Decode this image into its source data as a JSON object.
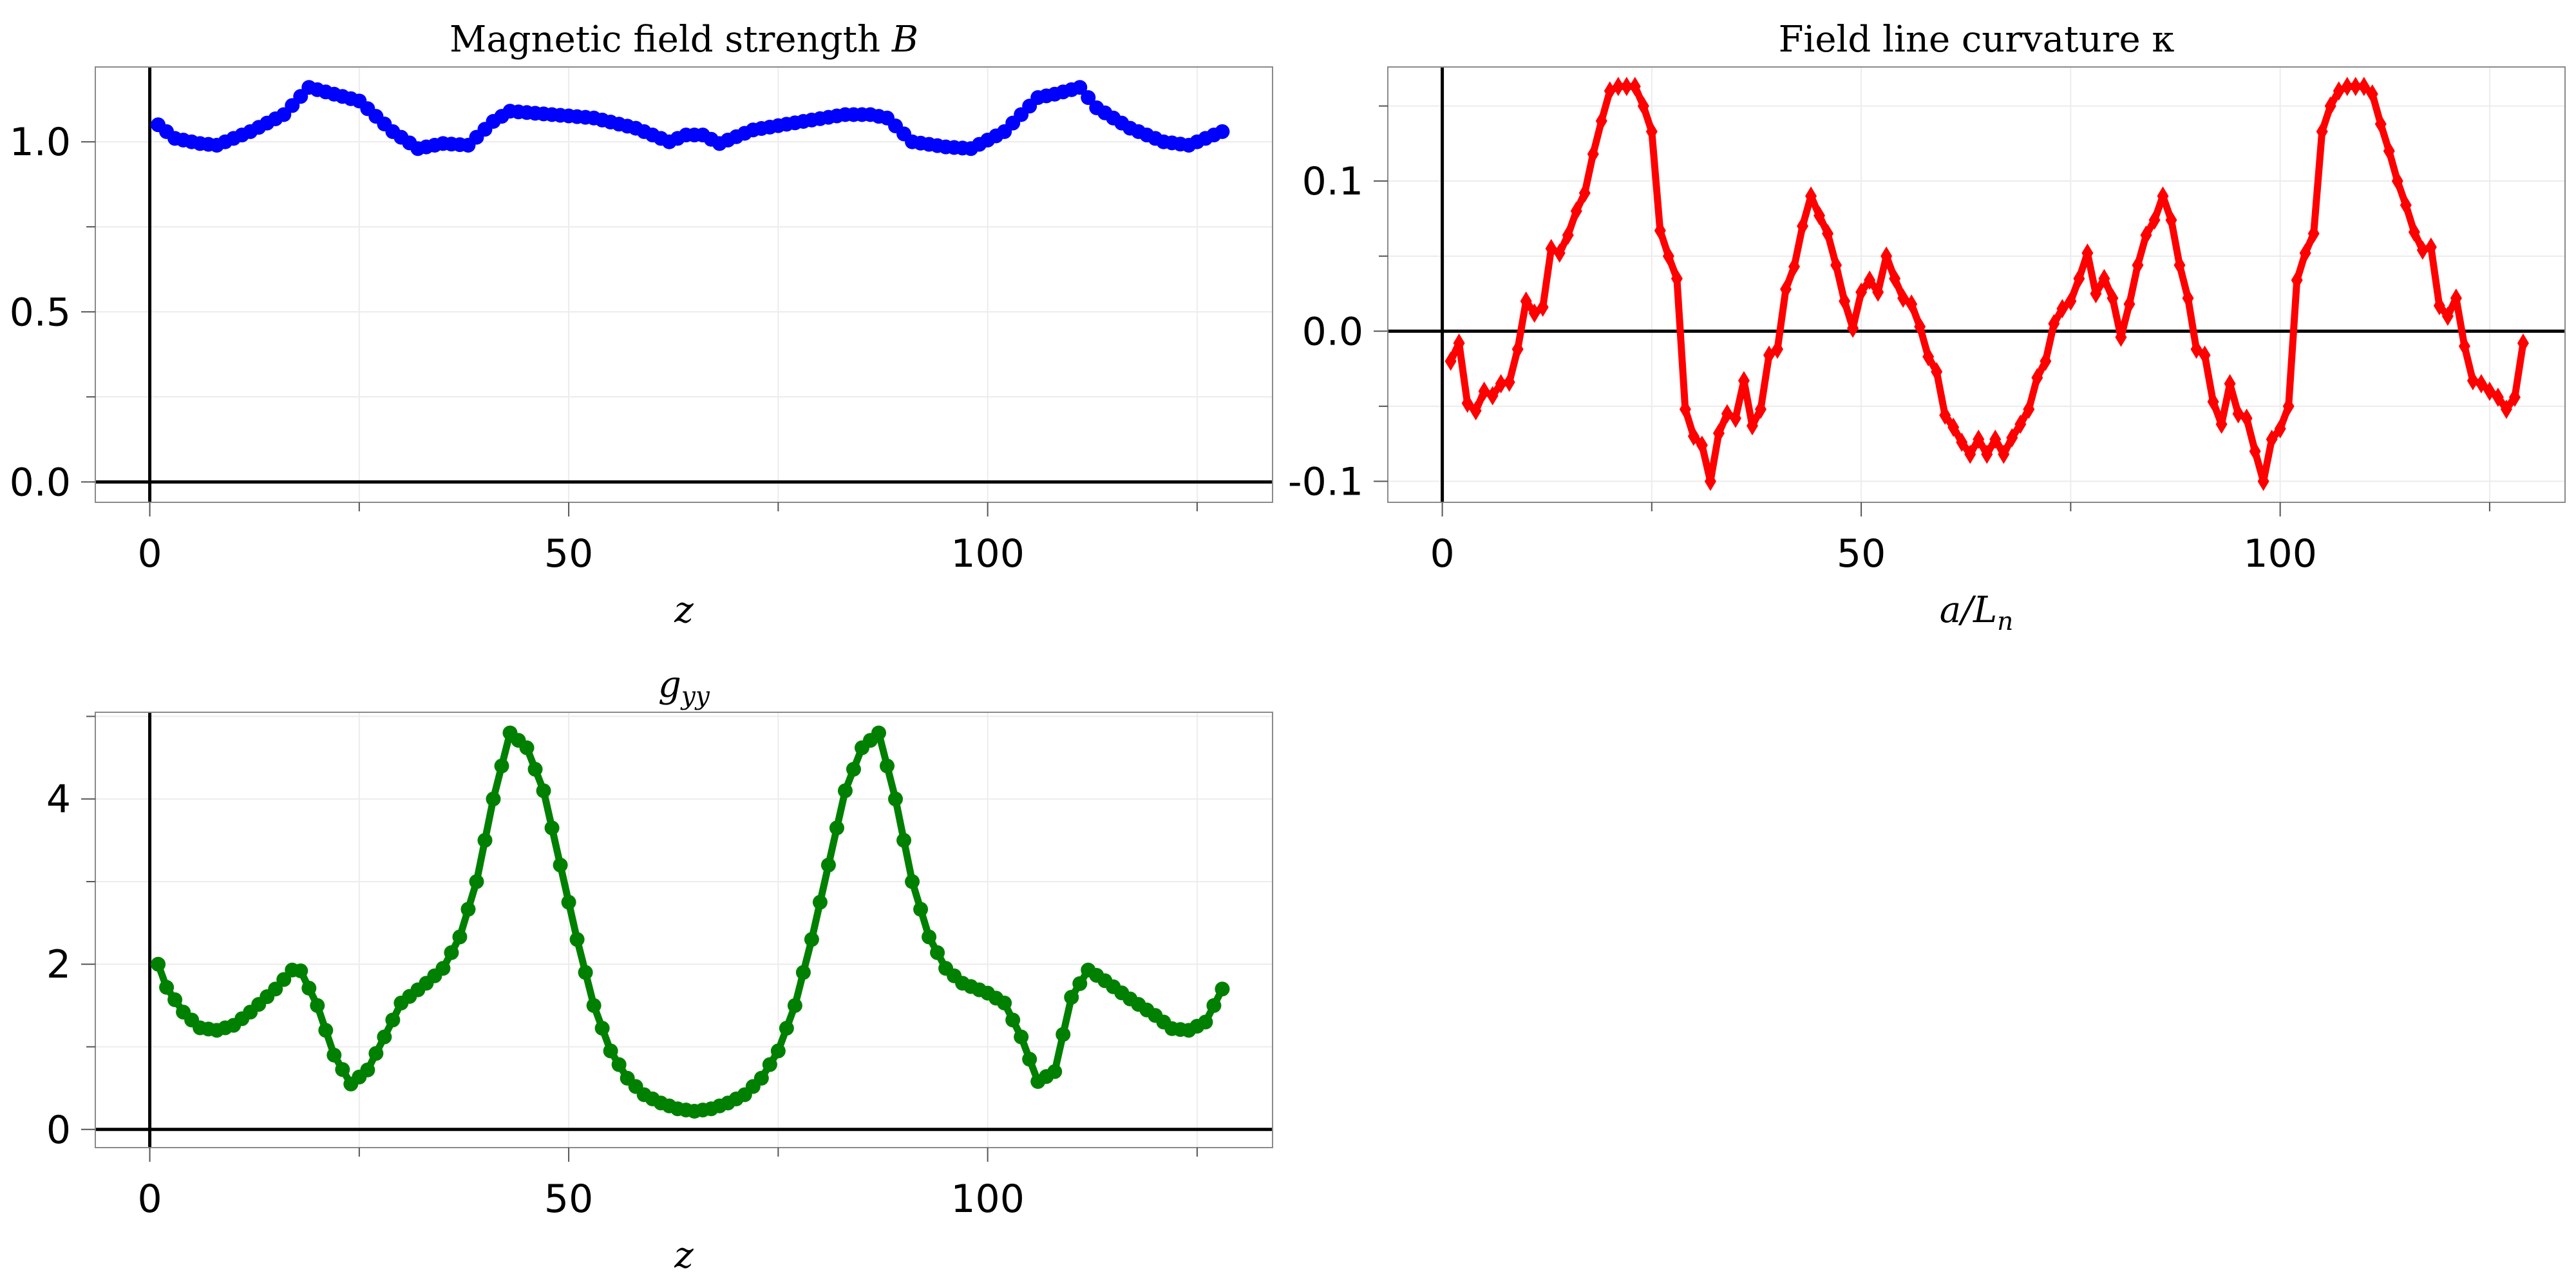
{
  "chart_data": [
    {
      "type": "line",
      "title": "Magnetic field strength B",
      "xlabel": "z",
      "ylabel": "",
      "xlim": [
        -6.5,
        134
      ],
      "ylim": [
        -0.06,
        1.22
      ],
      "xticks": [
        0,
        50,
        100
      ],
      "xtick_labels": [
        "0",
        "50",
        "100"
      ],
      "yticks": [
        0.0,
        0.5,
        1.0
      ],
      "ytick_labels": [
        "0.0",
        "0.5",
        "1.0"
      ],
      "grid": true,
      "color": "#0000ff",
      "marker": "circle",
      "knots": [
        [
          1,
          1.05
        ],
        [
          3,
          1.01
        ],
        [
          6,
          0.995
        ],
        [
          8,
          0.99
        ],
        [
          12,
          1.03
        ],
        [
          16,
          1.08
        ],
        [
          19,
          1.16
        ],
        [
          22,
          1.14
        ],
        [
          25,
          1.12
        ],
        [
          29,
          1.03
        ],
        [
          32,
          0.98
        ],
        [
          35,
          0.995
        ],
        [
          38,
          0.99
        ],
        [
          41,
          1.06
        ],
        [
          43,
          1.09
        ],
        [
          48,
          1.08
        ],
        [
          53,
          1.07
        ],
        [
          58,
          1.04
        ],
        [
          62,
          1.0
        ],
        [
          64,
          1.02
        ],
        [
          66,
          1.02
        ],
        [
          68,
          0.995
        ],
        [
          72,
          1.035
        ],
        [
          78,
          1.06
        ],
        [
          83,
          1.08
        ],
        [
          86,
          1.08
        ],
        [
          88,
          1.07
        ],
        [
          91,
          1.0
        ],
        [
          95,
          0.985
        ],
        [
          98,
          0.98
        ],
        [
          102,
          1.03
        ],
        [
          106,
          1.13
        ],
        [
          108,
          1.14
        ],
        [
          111,
          1.16
        ],
        [
          113,
          1.1
        ],
        [
          117,
          1.04
        ],
        [
          121,
          1.0
        ],
        [
          124,
          0.99
        ],
        [
          127,
          1.02
        ],
        [
          128,
          1.03
        ]
      ],
      "n_points": 128
    },
    {
      "type": "line",
      "title": "Field line curvature κ",
      "xlabel": "a/L_n",
      "ylabel": "",
      "xlim": [
        -6.5,
        134
      ],
      "ylim": [
        -0.114,
        0.176
      ],
      "xticks": [
        0,
        50,
        100
      ],
      "xtick_labels": [
        "0",
        "50",
        "100"
      ],
      "yticks": [
        -0.1,
        0.0,
        0.1
      ],
      "ytick_labels": [
        "-0.1",
        "0.0",
        "0.1"
      ],
      "grid": true,
      "color": "#ff0000",
      "marker": "diamond",
      "values": [
        -0.02,
        -0.008,
        -0.048,
        -0.053,
        -0.04,
        -0.043,
        -0.035,
        -0.034,
        -0.012,
        0.02,
        0.012,
        0.016,
        0.055,
        0.052,
        0.064,
        0.08,
        0.092,
        0.118,
        0.14,
        0.16,
        0.163,
        0.163,
        0.163,
        0.15,
        0.133,
        0.067,
        0.05,
        0.035,
        -0.052,
        -0.07,
        -0.076,
        -0.1,
        -0.068,
        -0.055,
        -0.058,
        -0.033,
        -0.063,
        -0.052,
        -0.016,
        -0.012,
        0.028,
        0.043,
        0.07,
        0.09,
        0.077,
        0.065,
        0.044,
        0.02,
        0.002,
        0.026,
        0.034,
        0.026,
        0.05,
        0.035,
        0.022,
        0.018,
        0.003,
        -0.017,
        -0.027,
        -0.056,
        -0.064,
        -0.074,
        -0.082,
        -0.072,
        -0.082,
        -0.072,
        -0.082,
        -0.071,
        -0.062,
        -0.052,
        -0.031,
        -0.02,
        0.005,
        0.015,
        0.02,
        0.035,
        0.052,
        0.025,
        0.035,
        0.022,
        -0.004,
        0.018,
        0.044,
        0.064,
        0.074,
        0.09,
        0.074,
        0.044,
        0.022,
        -0.012,
        -0.016,
        -0.047,
        -0.062,
        -0.035,
        -0.055,
        -0.058,
        -0.08,
        -0.1,
        -0.072,
        -0.065,
        -0.05,
        0.034,
        0.052,
        0.065,
        0.133,
        0.15,
        0.16,
        0.163,
        0.163,
        0.163,
        0.158,
        0.138,
        0.12,
        0.1,
        0.084,
        0.066,
        0.054,
        0.056,
        0.017,
        0.01,
        0.022,
        -0.01,
        -0.033,
        -0.035,
        -0.04,
        -0.044,
        -0.052,
        -0.044,
        -0.008
      ]
    },
    {
      "type": "line",
      "title": "g_yy",
      "xlabel": "z",
      "ylabel": "",
      "xlim": [
        -6.5,
        134
      ],
      "ylim": [
        -0.22,
        5.05
      ],
      "xticks": [
        0,
        50,
        100
      ],
      "xtick_labels": [
        "0",
        "50",
        "100"
      ],
      "yticks": [
        0,
        2,
        4
      ],
      "ytick_labels": [
        "0",
        "2",
        "4"
      ],
      "grid": true,
      "color": "#008000",
      "marker": "circle",
      "knots": [
        [
          1,
          2.0
        ],
        [
          2,
          1.72
        ],
        [
          4,
          1.42
        ],
        [
          6,
          1.23
        ],
        [
          8,
          1.2
        ],
        [
          10,
          1.26
        ],
        [
          12,
          1.42
        ],
        [
          15,
          1.7
        ],
        [
          17,
          1.93
        ],
        [
          18,
          1.92
        ],
        [
          20,
          1.5
        ],
        [
          22,
          0.9
        ],
        [
          24,
          0.55
        ],
        [
          26,
          0.72
        ],
        [
          28,
          1.12
        ],
        [
          30,
          1.53
        ],
        [
          33,
          1.77
        ],
        [
          35,
          1.95
        ],
        [
          37,
          2.33
        ],
        [
          39,
          3.0
        ],
        [
          41,
          4.0
        ],
        [
          43,
          4.8
        ],
        [
          45,
          4.62
        ],
        [
          47,
          4.1
        ],
        [
          49,
          3.2
        ],
        [
          51,
          2.3
        ],
        [
          53,
          1.5
        ],
        [
          55,
          0.95
        ],
        [
          57,
          0.62
        ],
        [
          59,
          0.42
        ],
        [
          61,
          0.32
        ],
        [
          63,
          0.25
        ],
        [
          65,
          0.22
        ],
        [
          67,
          0.25
        ],
        [
          69,
          0.32
        ],
        [
          71,
          0.42
        ],
        [
          73,
          0.62
        ],
        [
          75,
          0.95
        ],
        [
          77,
          1.5
        ],
        [
          79,
          2.3
        ],
        [
          81,
          3.2
        ],
        [
          83,
          4.1
        ],
        [
          85,
          4.62
        ],
        [
          87,
          4.8
        ],
        [
          89,
          4.0
        ],
        [
          91,
          3.0
        ],
        [
          93,
          2.33
        ],
        [
          95,
          1.95
        ],
        [
          97,
          1.77
        ],
        [
          100,
          1.65
        ],
        [
          102,
          1.53
        ],
        [
          104,
          1.12
        ],
        [
          106,
          0.58
        ],
        [
          108,
          0.7
        ],
        [
          110,
          1.6
        ],
        [
          112,
          1.93
        ],
        [
          114,
          1.8
        ],
        [
          117,
          1.58
        ],
        [
          120,
          1.38
        ],
        [
          122,
          1.22
        ],
        [
          124,
          1.2
        ],
        [
          126,
          1.3
        ],
        [
          128,
          1.7
        ]
      ],
      "n_points": 128
    }
  ]
}
